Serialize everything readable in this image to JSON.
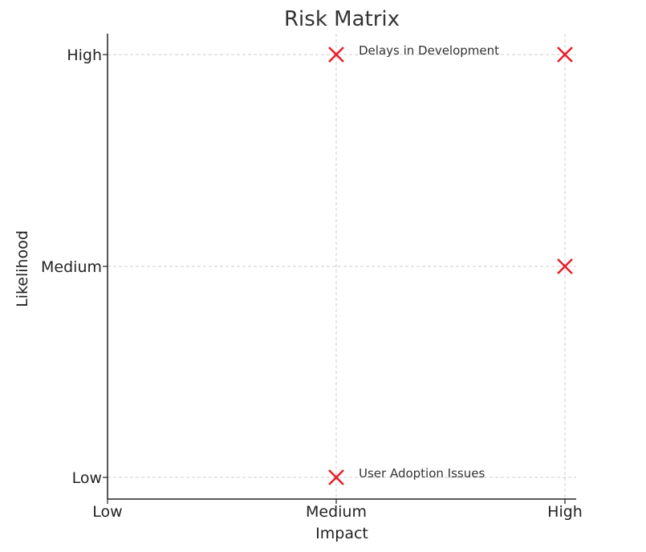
{
  "chart_data": {
    "type": "scatter",
    "title": "Risk Matrix",
    "xlabel": "Impact",
    "ylabel": "Likelihood",
    "x_categories": [
      "Low",
      "Medium",
      "High"
    ],
    "y_categories": [
      "Low",
      "Medium",
      "High"
    ],
    "grid": true,
    "marker": "x",
    "marker_color": "#e8202a",
    "points": [
      {
        "x": "Medium",
        "y": "High",
        "label": "Delays in Development"
      },
      {
        "x": "High",
        "y": "High",
        "label": ""
      },
      {
        "x": "High",
        "y": "Medium",
        "label": ""
      },
      {
        "x": "Medium",
        "y": "Low",
        "label": "User Adoption Issues"
      }
    ]
  }
}
